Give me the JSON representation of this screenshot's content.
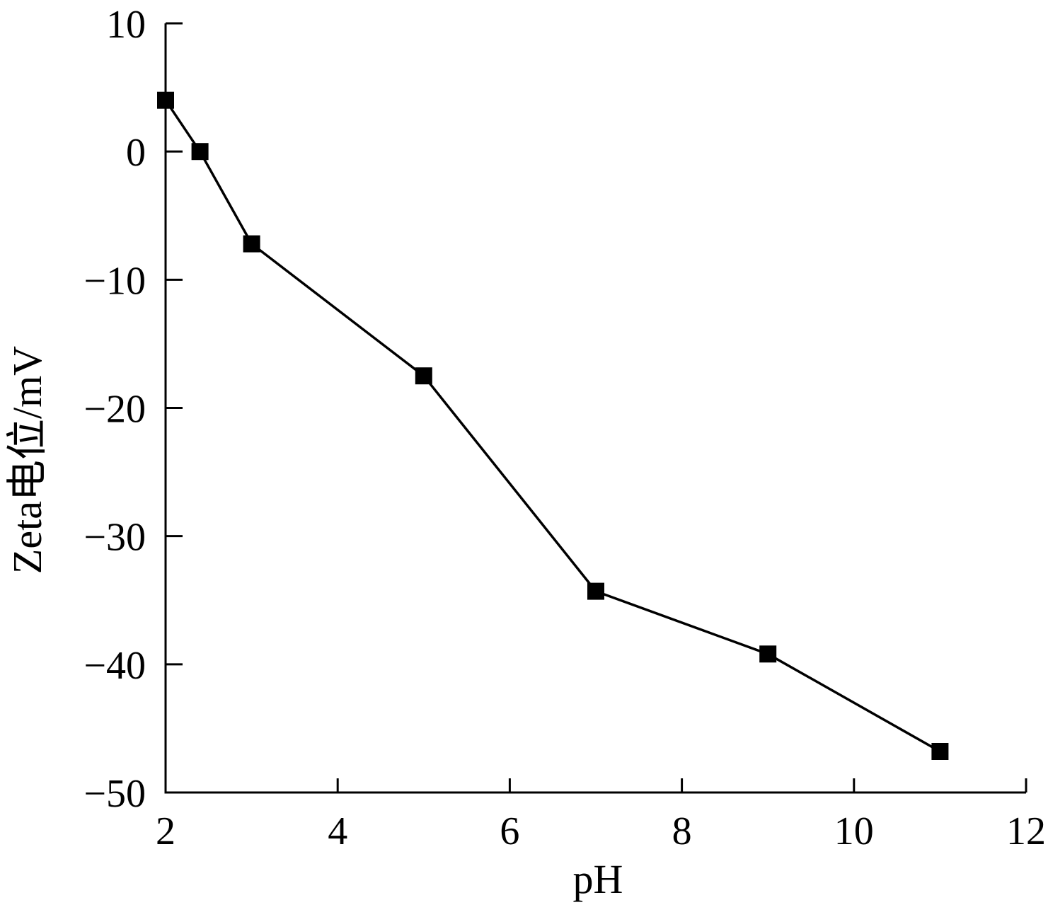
{
  "chart_data": {
    "type": "line",
    "title": "",
    "xlabel": "pH",
    "ylabel": "Zeta电位/mV",
    "xlim": [
      2,
      12
    ],
    "ylim": [
      -50,
      10
    ],
    "xticks": [
      2,
      4,
      6,
      8,
      10,
      12
    ],
    "xtick_labels": [
      "2",
      "4",
      "6",
      "8",
      "10",
      "12"
    ],
    "yticks": [
      10,
      0,
      -10,
      -20,
      -30,
      -40,
      -50
    ],
    "ytick_labels": [
      "10",
      "0",
      "−10",
      "−20",
      "−30",
      "−40",
      "−50"
    ],
    "grid": false,
    "legend": "none",
    "marker": "square",
    "color": "#000000",
    "series": [
      {
        "x": [
          2.0,
          2.4,
          3.0,
          5.0,
          7.0,
          9.0,
          11.0
        ],
        "y": [
          4.0,
          0.0,
          -7.2,
          -17.5,
          -34.3,
          -39.2,
          -46.8
        ]
      }
    ]
  }
}
